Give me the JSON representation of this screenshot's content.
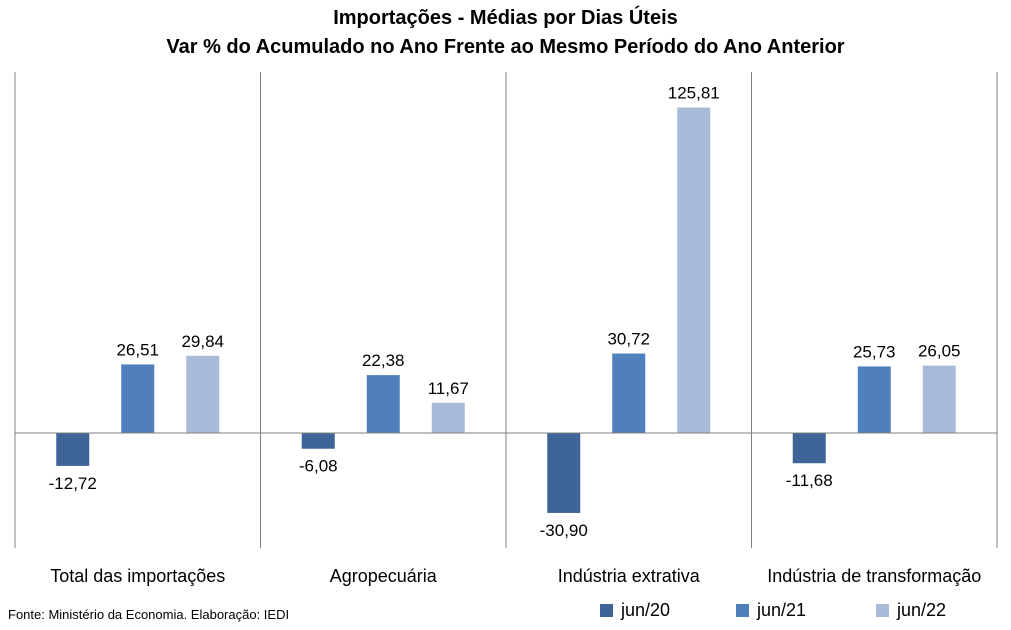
{
  "chart_data": {
    "type": "bar",
    "title": "Importações - Médias por Dias Úteis",
    "subtitle": "Var % do Acumulado no Ano Frente ao Mesmo Período do Ano Anterior",
    "categories": [
      "Total das importações",
      "Agropecuária",
      "Indústria extrativa",
      "Indústria de transformação"
    ],
    "series": [
      {
        "name": "jun/20",
        "color": "#3f6498",
        "values": [
          -12.72,
          -6.08,
          -30.9,
          -11.68
        ],
        "labels": [
          "-12,72",
          "-6,08",
          "-30,90",
          "-11,68"
        ]
      },
      {
        "name": "jun/21",
        "color": "#4f80bd",
        "values": [
          26.51,
          22.38,
          30.72,
          25.73
        ],
        "labels": [
          "26,51",
          "22,38",
          "30,72",
          "25,73"
        ]
      },
      {
        "name": "jun/22",
        "color": "#a9b9d8",
        "values": [
          29.84,
          11.67,
          125.81,
          26.05
        ],
        "labels": [
          "29,84",
          "11,67",
          "125,81",
          "26,05"
        ]
      }
    ],
    "ylim": [
      -45,
      140
    ],
    "grid": false,
    "legend_position": "bottom-right"
  },
  "source": "Fonte: Ministério da Economia. Elaboração: IEDI"
}
